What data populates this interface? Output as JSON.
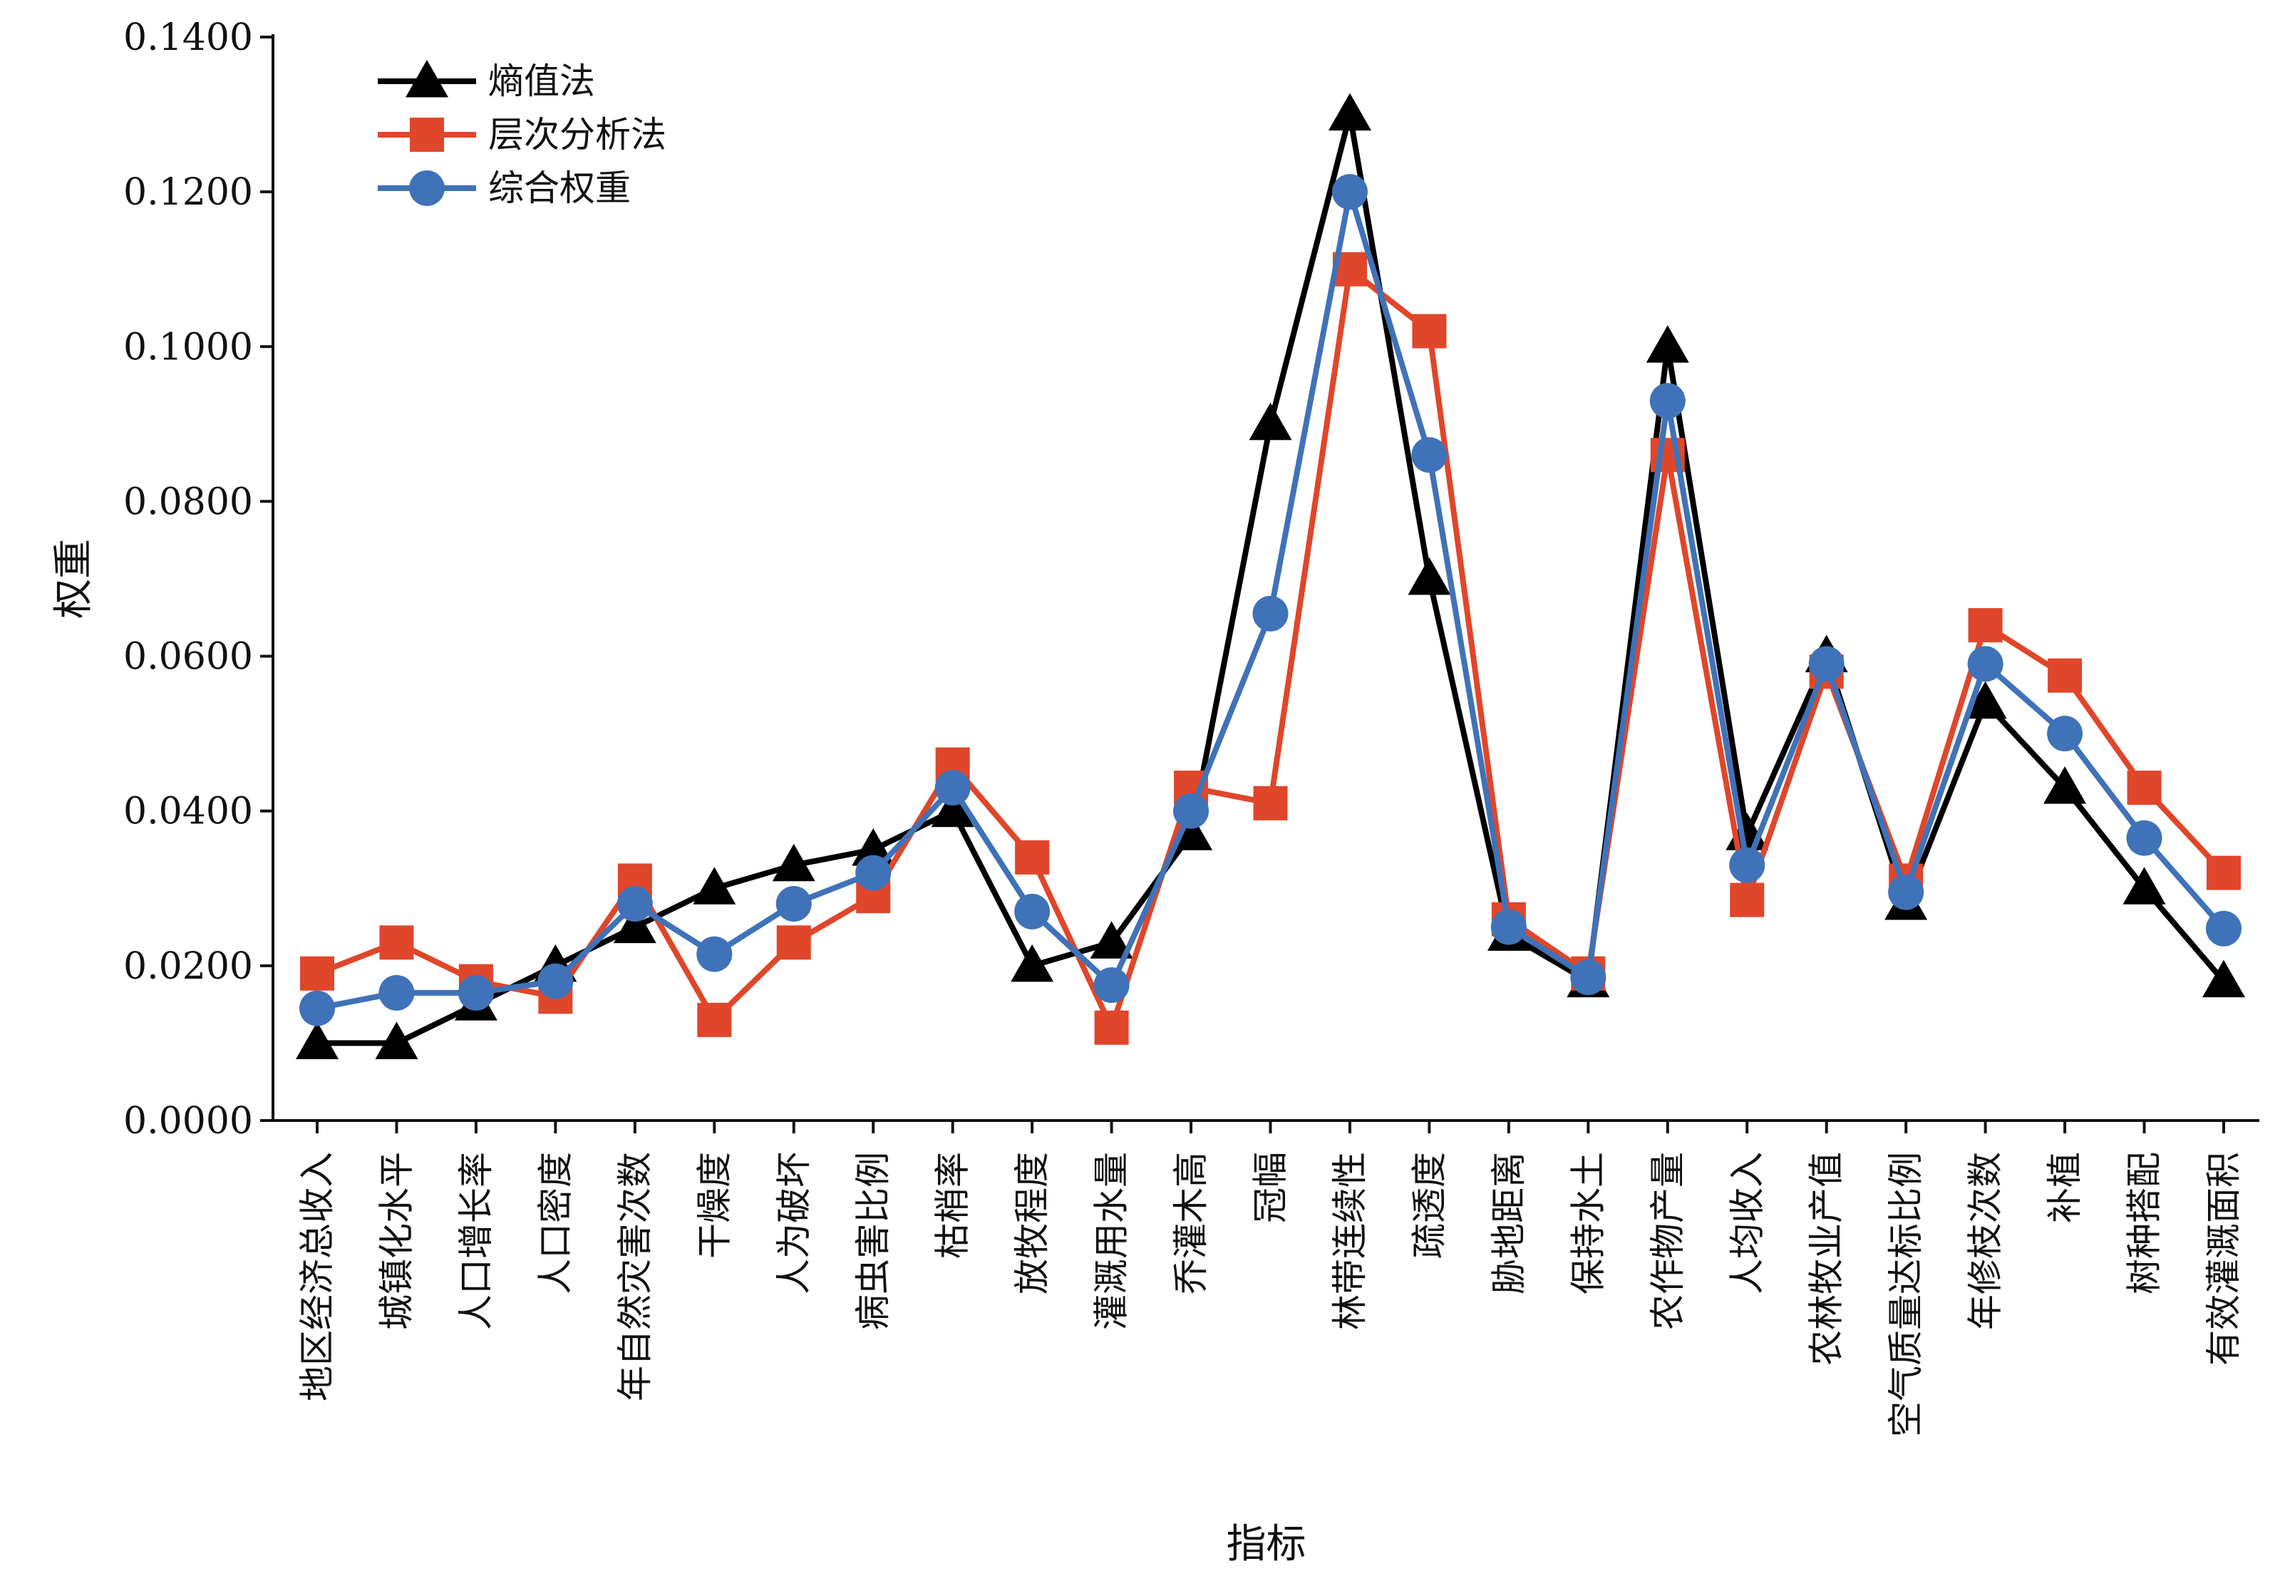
{
  "chart_data": {
    "type": "line",
    "xlabel": "指标",
    "ylabel": "权重",
    "ylim": [
      0,
      0.14
    ],
    "yticks": [
      "0.0000",
      "0.0200",
      "0.0400",
      "0.0600",
      "0.0800",
      "0.1000",
      "0.1200",
      "0.1400"
    ],
    "grid": false,
    "legend_position": "top-left",
    "categories": [
      "地区经济总收入",
      "城镇化水平",
      "人口增长率",
      "人口密度",
      "年自然灾害次数",
      "干燥度",
      "人为破坏",
      "病虫害比例",
      "枯梢率",
      "放牧程度",
      "灌溉用水量",
      "乔灌木高",
      "冠幅",
      "林带连续性",
      "疏透度",
      "胁地距离",
      "保持水土",
      "农作物产量",
      "人均收入",
      "农林牧业产值",
      "空气质量达标比例",
      "年修枝次数",
      "补植",
      "树种搭配",
      "有效灌溉面积"
    ],
    "series": [
      {
        "name": "熵值法",
        "color": "#000000",
        "marker": "triangle",
        "values": [
          0.01,
          0.01,
          0.015,
          0.02,
          0.025,
          0.03,
          0.033,
          0.035,
          0.04,
          0.02,
          0.023,
          0.037,
          0.09,
          0.13,
          0.07,
          0.024,
          0.018,
          0.1,
          0.037,
          0.06,
          0.028,
          0.054,
          0.043,
          0.03,
          0.018
        ]
      },
      {
        "name": "层次分析法",
        "color": "#E0462A",
        "marker": "square",
        "values": [
          0.019,
          0.023,
          0.018,
          0.016,
          0.031,
          0.013,
          0.023,
          0.029,
          0.046,
          0.034,
          0.012,
          0.043,
          0.041,
          0.11,
          0.102,
          0.026,
          0.019,
          0.086,
          0.0285,
          0.058,
          0.031,
          0.064,
          0.0575,
          0.043,
          0.032
        ]
      },
      {
        "name": "综合权重",
        "color": "#3F72B8",
        "marker": "circle",
        "values": [
          0.0145,
          0.0165,
          0.0165,
          0.018,
          0.028,
          0.0215,
          0.028,
          0.032,
          0.043,
          0.027,
          0.0175,
          0.04,
          0.0655,
          0.12,
          0.086,
          0.025,
          0.0185,
          0.093,
          0.033,
          0.059,
          0.0295,
          0.059,
          0.05,
          0.0365,
          0.0248
        ]
      }
    ]
  }
}
